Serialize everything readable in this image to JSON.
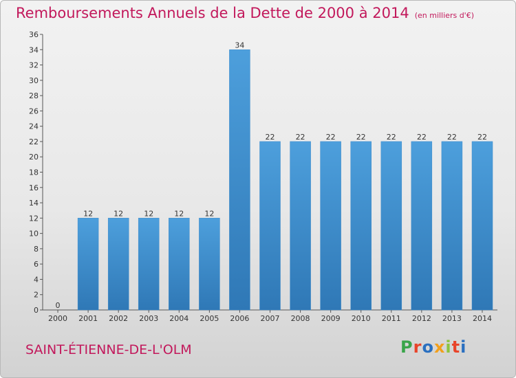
{
  "chart_data": {
    "type": "bar",
    "title": "Remboursements Annuels de la Dette de 2000 à 2014",
    "subtitle": "(en milliers d'€)",
    "categories": [
      "2000",
      "2001",
      "2002",
      "2003",
      "2004",
      "2005",
      "2006",
      "2007",
      "2008",
      "2009",
      "2010",
      "2011",
      "2012",
      "2013",
      "2014"
    ],
    "values": [
      0,
      12,
      12,
      12,
      12,
      12,
      34,
      22,
      22,
      22,
      22,
      22,
      22,
      22,
      22
    ],
    "ylim": [
      0,
      36
    ],
    "yticks": [
      0,
      2,
      4,
      6,
      8,
      10,
      12,
      14,
      16,
      18,
      20,
      22,
      24,
      26,
      28,
      30,
      32,
      34,
      36
    ],
    "grid": false,
    "bar_color": "#4d9fdc",
    "bar_color_dark": "#2f78b6"
  },
  "footer": {
    "commune": "SAINT-ÉTIENNE-DE-L'OLM",
    "logo": "Proxiti",
    "logo_colors": [
      "#3aa54a",
      "#e8442a",
      "#2a6fc0",
      "#f2a01c",
      "#8bc43f",
      "#e8442a",
      "#2a6fc0"
    ]
  }
}
